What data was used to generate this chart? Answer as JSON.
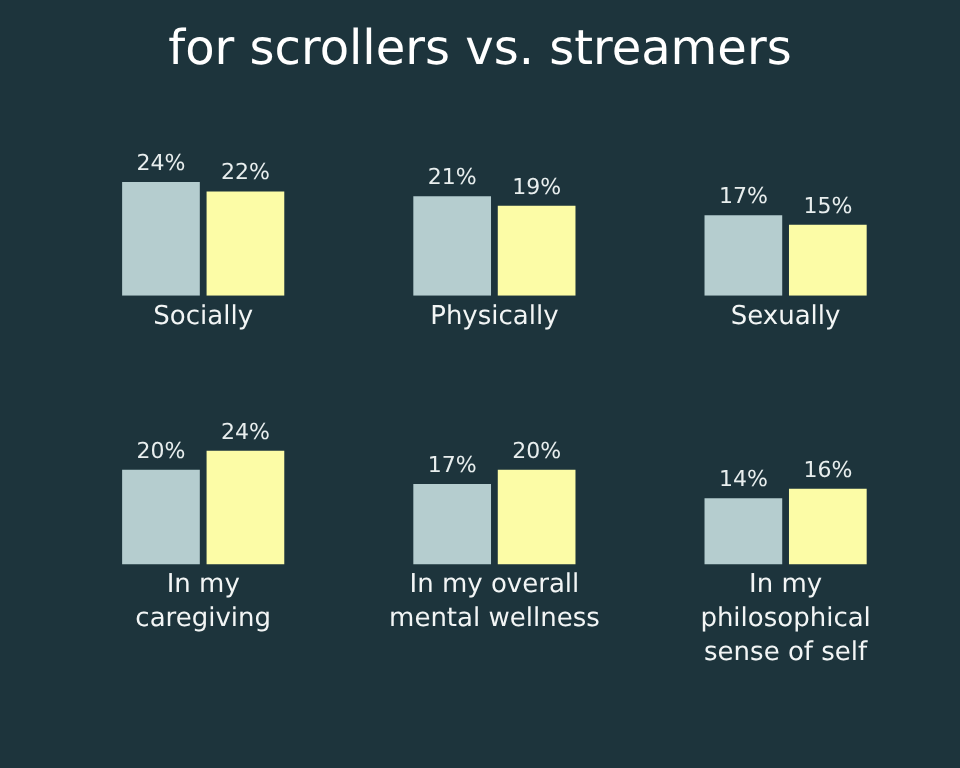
{
  "chart_data": [
    {
      "type": "bar",
      "title": "for scrollers vs. streamers",
      "categories": [
        "Socially",
        "Physically",
        "Sexually"
      ],
      "series": [
        {
          "color": "#b5cdcf",
          "values": [
            24,
            21,
            17
          ],
          "value_labels": [
            "24%",
            "21%",
            "17%"
          ]
        },
        {
          "color": "#fcfca6",
          "values": [
            22,
            19,
            15
          ],
          "value_labels": [
            "22%",
            "19%",
            "15%"
          ]
        }
      ]
    },
    {
      "type": "bar",
      "categories": [
        "In my caregiving",
        "In my overall mental wellness",
        "In my philosophical sense of self"
      ],
      "series": [
        {
          "color": "#b5cdcf",
          "values": [
            20,
            17,
            14
          ],
          "value_labels": [
            "20%",
            "17%",
            "14%"
          ]
        },
        {
          "color": "#fcfca6",
          "values": [
            24,
            20,
            16
          ],
          "value_labels": [
            "24%",
            "20%",
            "16%"
          ]
        }
      ]
    }
  ]
}
